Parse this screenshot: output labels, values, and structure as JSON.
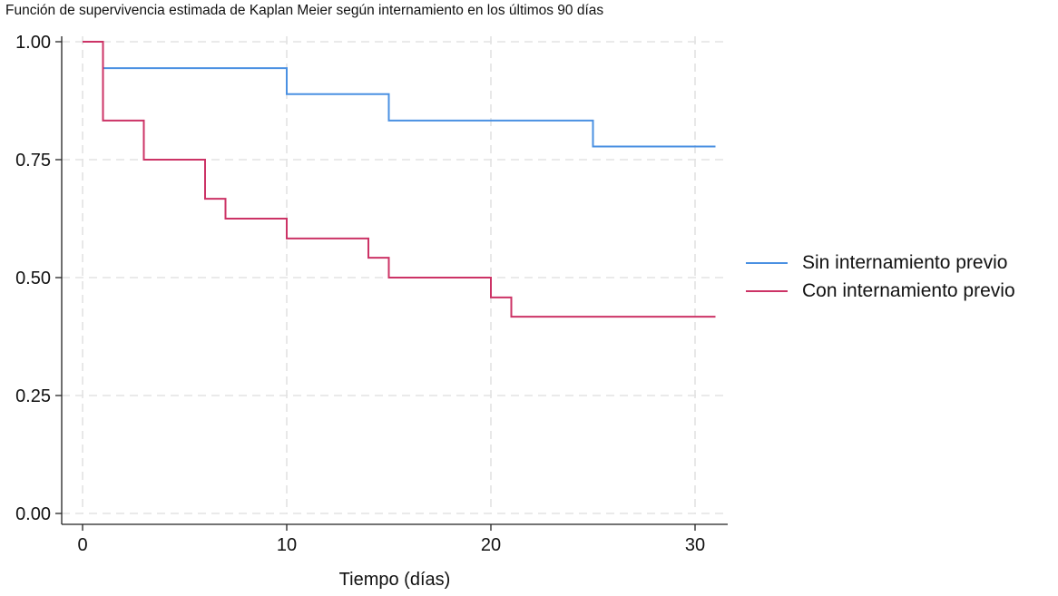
{
  "chart_data": {
    "type": "line",
    "step": true,
    "title": "Función de supervivencia estimada de Kaplan Meier según internamiento en los últimos 90 días",
    "xlabel": "Tiempo (días)",
    "ylabel": "",
    "xlim": [
      0,
      31
    ],
    "ylim": [
      0,
      1
    ],
    "xticks": [
      0,
      10,
      20,
      30
    ],
    "xtick_labels": [
      "0",
      "10",
      "20",
      "30"
    ],
    "yticks": [
      0,
      0.25,
      0.5,
      0.75,
      1
    ],
    "ytick_labels": [
      "0.00",
      "0.25",
      "0.50",
      "0.75",
      "1.00"
    ],
    "grid": true,
    "legend_position": "right",
    "series": [
      {
        "name": "Sin internamiento previo",
        "color": "#4a90e2",
        "x": [
          0,
          1,
          10,
          15,
          25,
          31
        ],
        "y": [
          1.0,
          0.944,
          0.889,
          0.833,
          0.778,
          0.778
        ]
      },
      {
        "name": "Con internamiento previo",
        "color": "#cc3366",
        "x": [
          0,
          1,
          3,
          6,
          7,
          10,
          14,
          15,
          20,
          21,
          31
        ],
        "y": [
          1.0,
          0.833,
          0.75,
          0.667,
          0.625,
          0.583,
          0.542,
          0.5,
          0.458,
          0.417,
          0.417
        ]
      }
    ]
  }
}
